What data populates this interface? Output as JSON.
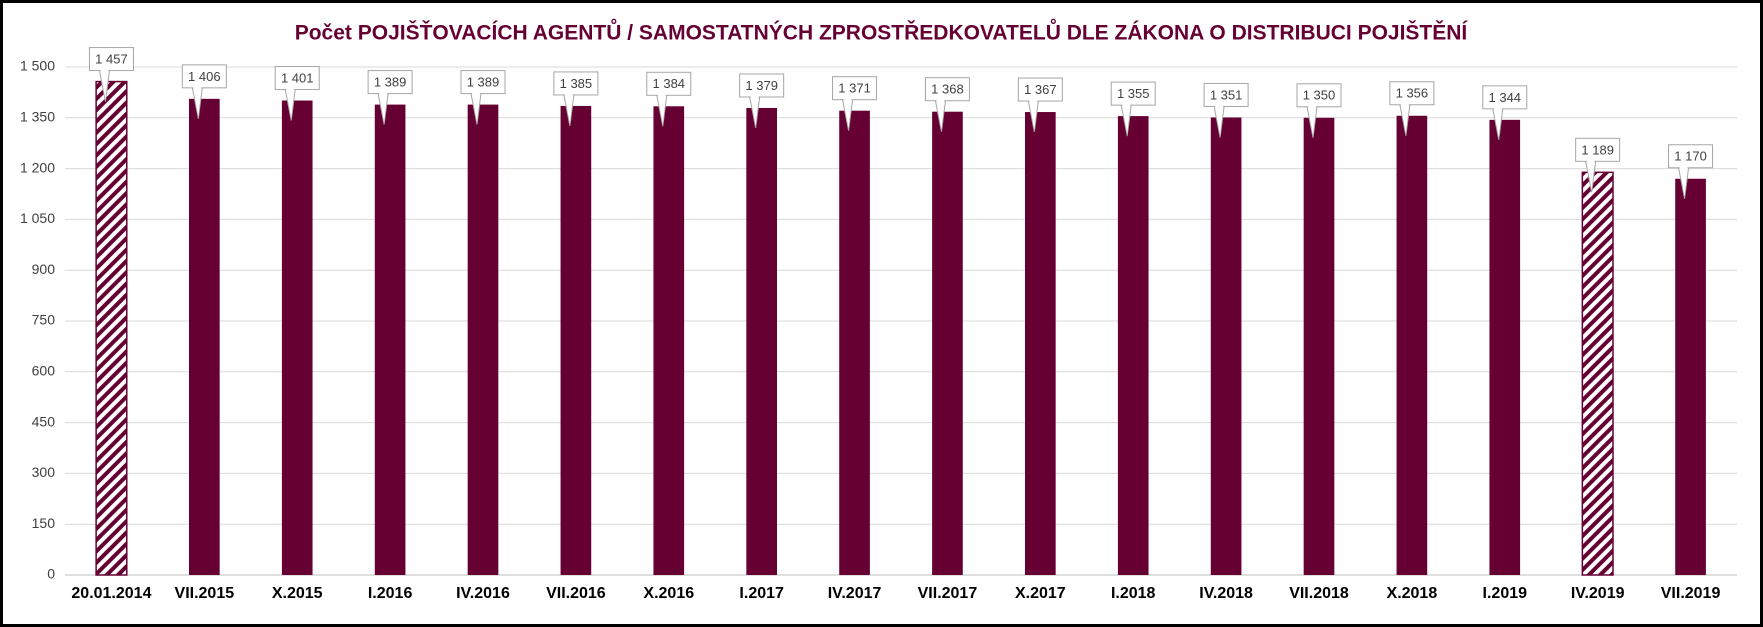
{
  "chart_data": {
    "type": "bar",
    "title": "Počet POJIŠŤOVACÍCH AGENTŮ / SAMOSTATNÝCH ZPROSTŘEDKOVATELŮ DLE ZÁKONA O DISTRIBUCI POJIŠTĚNÍ",
    "categories": [
      "20.01.2014",
      "VII.2015",
      "X.2015",
      "I.2016",
      "IV.2016",
      "VII.2016",
      "X.2016",
      "I.2017",
      "IV.2017",
      "VII.2017",
      "X.2017",
      "I.2018",
      "IV.2018",
      "VII.2018",
      "X.2018",
      "I.2019",
      "IV.2019",
      "VII.2019"
    ],
    "values": [
      1457,
      1406,
      1401,
      1389,
      1389,
      1385,
      1384,
      1379,
      1371,
      1368,
      1367,
      1355,
      1351,
      1350,
      1356,
      1344,
      1189,
      1170
    ],
    "value_labels": [
      "1 457",
      "1 406",
      "1 401",
      "1 389",
      "1 389",
      "1 385",
      "1 384",
      "1 379",
      "1 371",
      "1 368",
      "1 367",
      "1 355",
      "1 351",
      "1 350",
      "1 356",
      "1 344",
      "1 189",
      "1 170"
    ],
    "bar_fill": [
      "hatched",
      "solid",
      "solid",
      "solid",
      "solid",
      "solid",
      "solid",
      "solid",
      "solid",
      "solid",
      "solid",
      "solid",
      "solid",
      "solid",
      "solid",
      "solid",
      "hatched",
      "solid"
    ],
    "color": "#660033",
    "ylim": [
      0,
      1500
    ],
    "yticks": [
      0,
      150,
      300,
      450,
      600,
      750,
      900,
      {
        "value": 1050,
        "label": "1 050"
      },
      {
        "value": 1200,
        "label": "1 200"
      },
      {
        "value": 1350,
        "label": "1 350"
      },
      {
        "value": 1500,
        "label": "1 500"
      }
    ],
    "grid": true
  }
}
